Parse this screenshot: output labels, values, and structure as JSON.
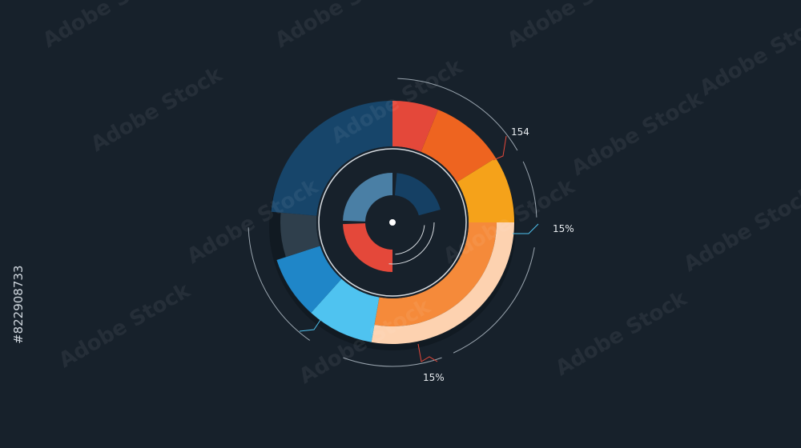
{
  "annotations": [
    "154",
    "15%",
    "15%"
  ],
  "watermark": {
    "brand": "Adobe Stock",
    "id": "#822908733"
  }
}
